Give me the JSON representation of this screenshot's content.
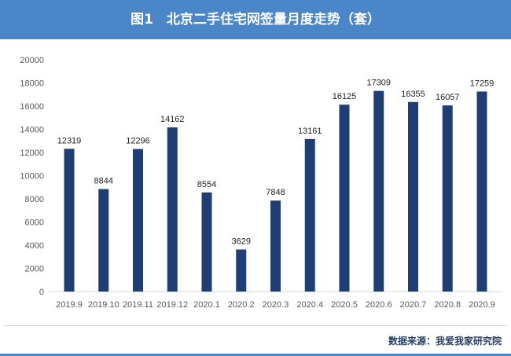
{
  "header": {
    "title": "图1　北京二手住宅网签量月度走势（套）"
  },
  "source": "数据来源：我爱我家研究院",
  "colors": {
    "header": "#4a86c8",
    "bar": "#1f3f74"
  },
  "chart_data": {
    "type": "bar",
    "title": "图1　北京二手住宅网签量月度走势（套）",
    "categories": [
      "2019.9",
      "2019.10",
      "2019.11",
      "2019.12",
      "2020.1",
      "2020.2",
      "2020.3",
      "2020.4",
      "2020.5",
      "2020.6",
      "2020.7",
      "2020.8",
      "2020.9"
    ],
    "values": [
      12319,
      8844,
      12296,
      14162,
      8554,
      3629,
      7848,
      13161,
      16125,
      17309,
      16355,
      16057,
      17259
    ],
    "yticks": [
      0,
      2000,
      4000,
      6000,
      8000,
      10000,
      12000,
      14000,
      16000,
      18000,
      20000
    ],
    "ylim": [
      0,
      20000
    ],
    "grid": false,
    "data_labels": true
  }
}
